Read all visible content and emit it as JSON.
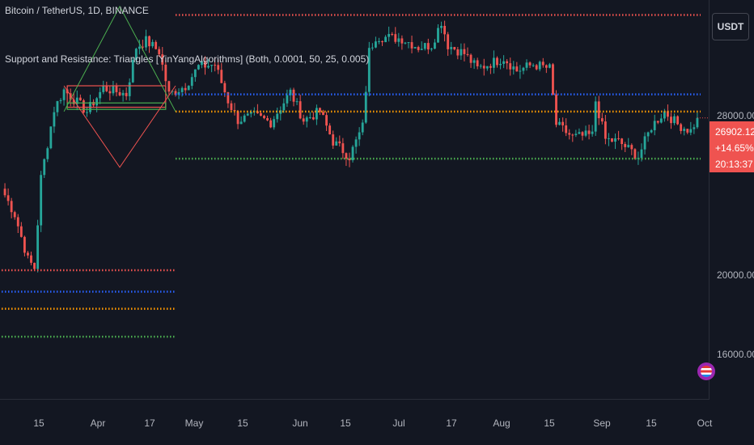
{
  "header": {
    "title": "Bitcoin / TetherUS, 1D, BINANCE",
    "indicator": "Support and Resistance: Triangles [YinYangAlgorithms] (Both, 0.0001, 50, 25, 0.005)"
  },
  "currency_button": "USDT",
  "price_axis": {
    "labels": [
      "28000.00",
      "20000.00",
      "16000.00"
    ],
    "last_price": "26902.12",
    "change": "+14.65%",
    "countdown": "20:13:37"
  },
  "time_axis": {
    "labels": [
      "15",
      "Apr",
      "17",
      "May",
      "15",
      "Jun",
      "15",
      "Jul",
      "17",
      "Aug",
      "15",
      "Sep",
      "15",
      "Oct"
    ]
  },
  "colors": {
    "background": "#131722",
    "up": "#26a69a",
    "down": "#ef5350",
    "resistance": "#ef5350",
    "support_mid": "#2962ff",
    "support_orange": "#ff9800",
    "support_green": "#4caf50"
  },
  "chart_data": {
    "type": "candlestick",
    "timeframe": "1D",
    "y_ticks": [
      28000,
      20000,
      16000
    ],
    "ylim": [
      13800,
      32400
    ],
    "last_value": 26902.12,
    "close_series": [
      {
        "date": "2023-03-01",
        "value": 23600
      },
      {
        "date": "2023-03-05",
        "value": 22400
      },
      {
        "date": "2023-03-09",
        "value": 20300
      },
      {
        "date": "2023-03-11",
        "value": 19900
      },
      {
        "date": "2023-03-13",
        "value": 24100
      },
      {
        "date": "2023-03-17",
        "value": 27300
      },
      {
        "date": "2023-03-20",
        "value": 28200
      },
      {
        "date": "2023-03-27",
        "value": 27200
      },
      {
        "date": "2023-04-01",
        "value": 28300
      },
      {
        "date": "2023-04-08",
        "value": 28000
      },
      {
        "date": "2023-04-11",
        "value": 30200
      },
      {
        "date": "2023-04-14",
        "value": 30500
      },
      {
        "date": "2023-04-18",
        "value": 30000
      },
      {
        "date": "2023-04-21",
        "value": 28000
      },
      {
        "date": "2023-04-26",
        "value": 28400
      },
      {
        "date": "2023-04-30",
        "value": 29300
      },
      {
        "date": "2023-05-05",
        "value": 29400
      },
      {
        "date": "2023-05-09",
        "value": 27700
      },
      {
        "date": "2023-05-12",
        "value": 26800
      },
      {
        "date": "2023-05-17",
        "value": 27000
      },
      {
        "date": "2023-05-22",
        "value": 26700
      },
      {
        "date": "2023-05-28",
        "value": 28100
      },
      {
        "date": "2023-06-01",
        "value": 26800
      },
      {
        "date": "2023-06-06",
        "value": 27200
      },
      {
        "date": "2023-06-10",
        "value": 25800
      },
      {
        "date": "2023-06-15",
        "value": 25100
      },
      {
        "date": "2023-06-19",
        "value": 26500
      },
      {
        "date": "2023-06-21",
        "value": 30000
      },
      {
        "date": "2023-06-23",
        "value": 30700
      },
      {
        "date": "2023-07-01",
        "value": 30600
      },
      {
        "date": "2023-07-06",
        "value": 30200
      },
      {
        "date": "2023-07-10",
        "value": 30300
      },
      {
        "date": "2023-07-13",
        "value": 31400
      },
      {
        "date": "2023-07-15",
        "value": 30300
      },
      {
        "date": "2023-07-20",
        "value": 29900
      },
      {
        "date": "2023-07-24",
        "value": 29200
      },
      {
        "date": "2023-08-01",
        "value": 29700
      },
      {
        "date": "2023-08-05",
        "value": 29100
      },
      {
        "date": "2023-08-10",
        "value": 29400
      },
      {
        "date": "2023-08-15",
        "value": 29200
      },
      {
        "date": "2023-08-17",
        "value": 26600
      },
      {
        "date": "2023-08-22",
        "value": 26000
      },
      {
        "date": "2023-08-28",
        "value": 26100
      },
      {
        "date": "2023-08-29",
        "value": 27700
      },
      {
        "date": "2023-09-01",
        "value": 25900
      },
      {
        "date": "2023-09-05",
        "value": 25800
      },
      {
        "date": "2023-09-11",
        "value": 25100
      },
      {
        "date": "2023-09-15",
        "value": 26500
      },
      {
        "date": "2023-09-19",
        "value": 27200
      },
      {
        "date": "2023-09-23",
        "value": 26600
      },
      {
        "date": "2023-09-27",
        "value": 26300
      },
      {
        "date": "2023-09-29",
        "value": 26902.12
      }
    ],
    "levels": [
      {
        "role": "resistance",
        "color": "#ef5350",
        "value": 31700,
        "from": "2023-04-23",
        "to": "2023-09-30"
      },
      {
        "role": "support",
        "color": "#2962ff",
        "value": 28000,
        "from": "2023-04-23",
        "to": "2023-09-30"
      },
      {
        "role": "support",
        "color": "#ff9800",
        "value": 27200,
        "from": "2023-04-23",
        "to": "2023-09-30"
      },
      {
        "role": "support",
        "color": "#4caf50",
        "value": 25000,
        "from": "2023-04-23",
        "to": "2023-09-30"
      },
      {
        "role": "resistance",
        "color": "#ef5350",
        "value": 19800,
        "from": "2023-03-01",
        "to": "2023-04-23"
      },
      {
        "role": "support",
        "color": "#2962ff",
        "value": 18800,
        "from": "2023-03-01",
        "to": "2023-04-23"
      },
      {
        "role": "support",
        "color": "#ff9800",
        "value": 18000,
        "from": "2023-03-01",
        "to": "2023-04-23"
      },
      {
        "role": "support",
        "color": "#4caf50",
        "value": 16700,
        "from": "2023-03-01",
        "to": "2023-04-23"
      }
    ],
    "triangles": [
      {
        "color": "#4caf50",
        "points": [
          [
            "2023-03-20",
            27200
          ],
          [
            "2023-04-06",
            32100
          ],
          [
            "2023-04-23",
            27200
          ]
        ]
      },
      {
        "color": "#ef5350",
        "points": [
          [
            "2023-03-20",
            28400
          ],
          [
            "2023-04-06",
            24600
          ],
          [
            "2023-04-23",
            28400
          ]
        ]
      }
    ],
    "boxes": [
      {
        "color": "#ef5350",
        "from": "2023-03-21",
        "to": "2023-04-20",
        "low": 27400,
        "high": 28400
      },
      {
        "color": "#4caf50",
        "from": "2023-03-21",
        "to": "2023-04-20",
        "low": 27300,
        "high": 27600
      }
    ]
  }
}
